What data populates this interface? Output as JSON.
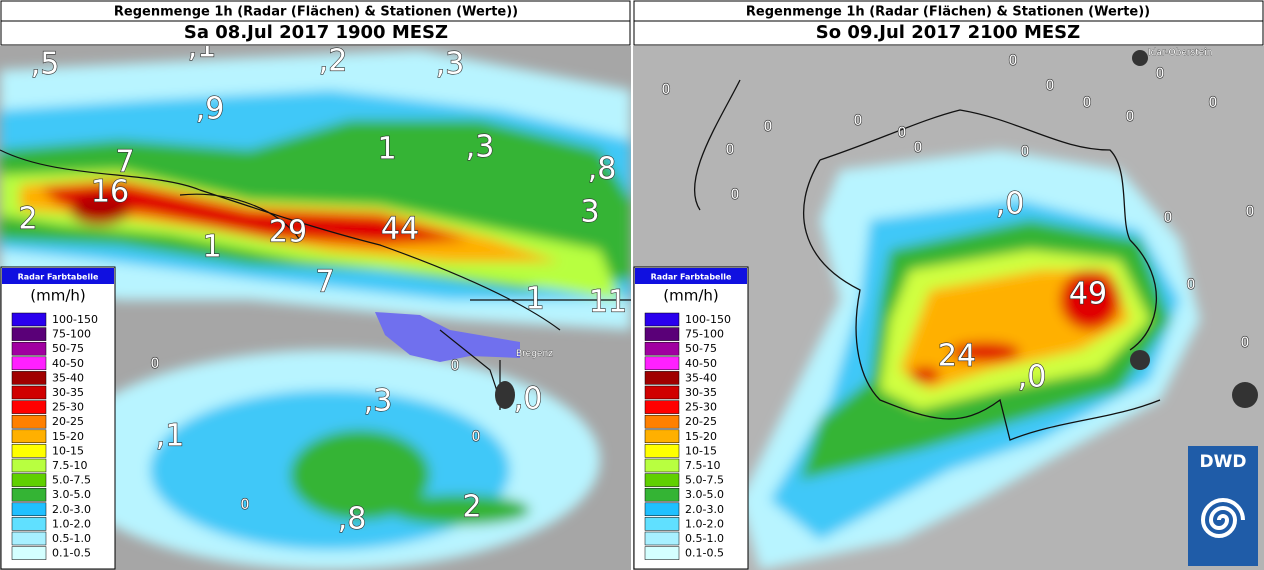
{
  "panels": [
    {
      "title": "Regenmenge 1h (Radar (Flächen) & Stationen (Werte))",
      "time": "Sa 08.Jul 2017 1900 MESZ",
      "stations": [
        ",5",
        ",1",
        ",2",
        ",3",
        ",9",
        "7",
        "1",
        ",3",
        ",8",
        "16",
        "2",
        "3",
        "29",
        "44",
        "1",
        "7",
        "1",
        "11",
        "0",
        "0",
        ",3",
        ",0",
        ",1",
        "0",
        "0",
        "2",
        ",8"
      ],
      "places": [
        "Bregenz"
      ]
    },
    {
      "title": "Regenmenge 1h (Radar (Flächen) & Stationen (Werte))",
      "time": "So 09.Jul 2017 2100 MESZ",
      "stations": [
        ",0",
        "49",
        "24",
        ",0",
        "0",
        "0",
        "0",
        "0",
        "0",
        "0",
        "0",
        "0",
        "0",
        "0",
        "0",
        "0",
        "0",
        "0",
        "0",
        "0",
        "0",
        "0"
      ],
      "places": [
        "Idar-Oberstein"
      ]
    }
  ],
  "legend": {
    "title": "Radar Farbtabelle",
    "unit": "(mm/h)",
    "classes": [
      {
        "label": "100-150",
        "color": "#2a00ee"
      },
      {
        "label": "75-100",
        "color": "#5a0078"
      },
      {
        "label": "50-75",
        "color": "#a000a0"
      },
      {
        "label": "40-50",
        "color": "#ff20ff"
      },
      {
        "label": "35-40",
        "color": "#a00000"
      },
      {
        "label": "30-35",
        "color": "#d00000"
      },
      {
        "label": "25-30",
        "color": "#ff0000"
      },
      {
        "label": "20-25",
        "color": "#ff8000"
      },
      {
        "label": "15-20",
        "color": "#ffb000"
      },
      {
        "label": "10-15",
        "color": "#ffff00"
      },
      {
        "label": "7.5-10",
        "color": "#b8ff40"
      },
      {
        "label": "5.0-7.5",
        "color": "#60d000"
      },
      {
        "label": "3.0-5.0",
        "color": "#34b434"
      },
      {
        "label": "2.0-3.0",
        "color": "#20c0ff"
      },
      {
        "label": "1.0-2.0",
        "color": "#60e0ff"
      },
      {
        "label": "0.5-1.0",
        "color": "#a8f0ff"
      },
      {
        "label": "0.1-0.5",
        "color": "#d4ffff"
      }
    ]
  },
  "logo": "DWD"
}
